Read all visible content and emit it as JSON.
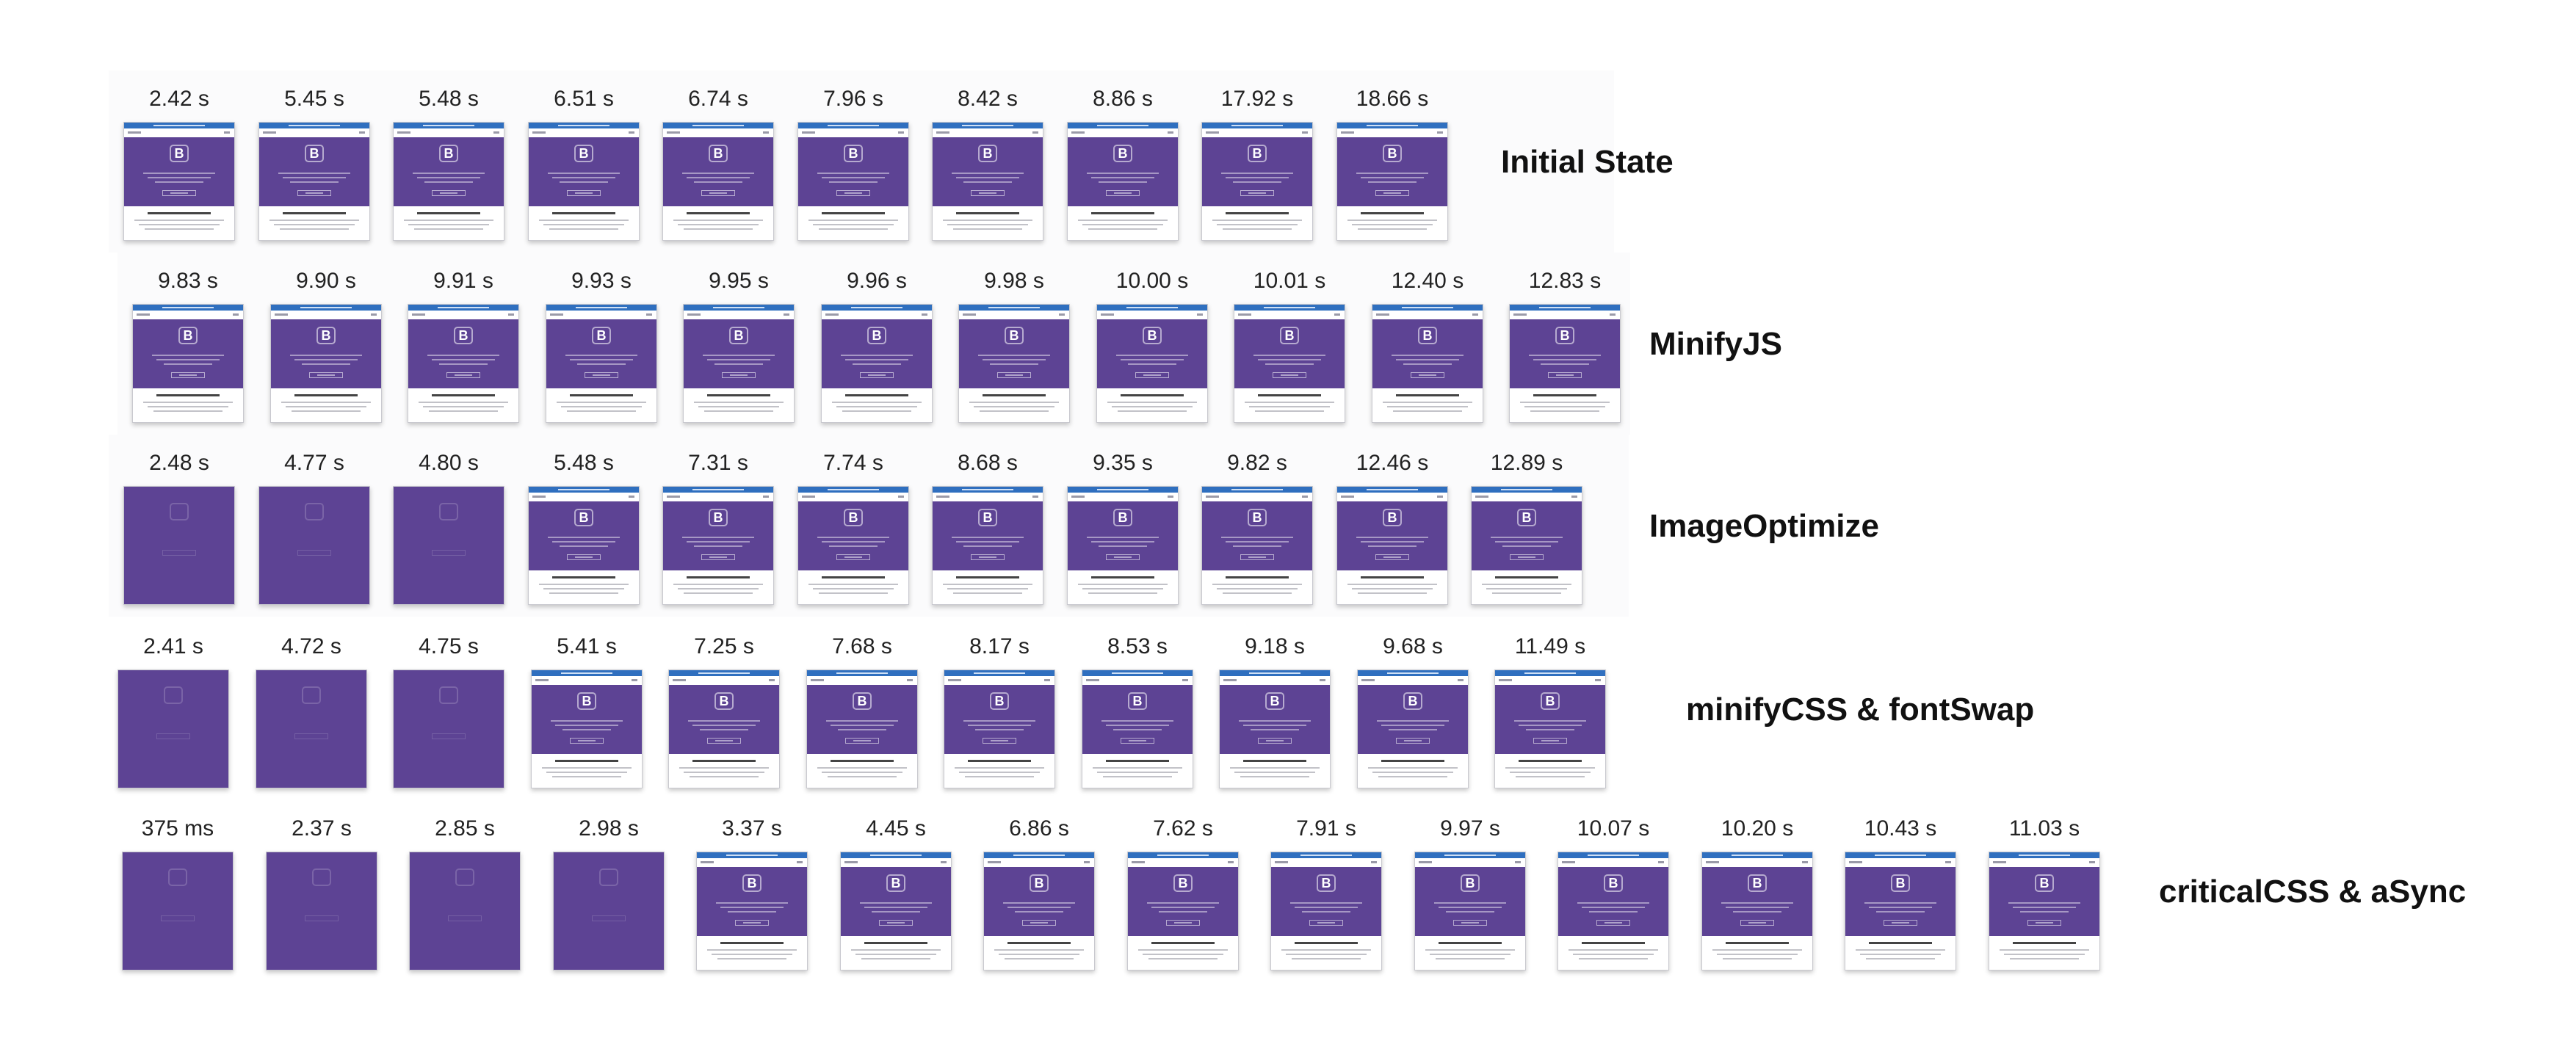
{
  "thumbnail": {
    "logo_letter": "B",
    "hero_color": "#5d4394",
    "bar_color": "#2f6fbf"
  },
  "rows": [
    {
      "label": "Initial State",
      "frames": [
        {
          "time": "2.42 s",
          "state": "loaded"
        },
        {
          "time": "5.45 s",
          "state": "loaded"
        },
        {
          "time": "5.48 s",
          "state": "loaded"
        },
        {
          "time": "6.51 s",
          "state": "loaded"
        },
        {
          "time": "6.74 s",
          "state": "loaded"
        },
        {
          "time": "7.96 s",
          "state": "loaded"
        },
        {
          "time": "8.42 s",
          "state": "loaded"
        },
        {
          "time": "8.86 s",
          "state": "loaded"
        },
        {
          "time": "17.92 s",
          "state": "loaded"
        },
        {
          "time": "18.66 s",
          "state": "loaded"
        }
      ]
    },
    {
      "label": "MinifyJS",
      "frames": [
        {
          "time": "9.83 s",
          "state": "loaded"
        },
        {
          "time": "9.90 s",
          "state": "loaded"
        },
        {
          "time": "9.91 s",
          "state": "loaded"
        },
        {
          "time": "9.93 s",
          "state": "loaded"
        },
        {
          "time": "9.95 s",
          "state": "loaded"
        },
        {
          "time": "9.96 s",
          "state": "loaded"
        },
        {
          "time": "9.98 s",
          "state": "loaded"
        },
        {
          "time": "10.00 s",
          "state": "loaded"
        },
        {
          "time": "10.01 s",
          "state": "loaded"
        },
        {
          "time": "12.40 s",
          "state": "loaded"
        },
        {
          "time": "12.83 s",
          "state": "loaded"
        }
      ]
    },
    {
      "label": "ImageOptimize",
      "frames": [
        {
          "time": "2.48 s",
          "state": "loading"
        },
        {
          "time": "4.77 s",
          "state": "loading"
        },
        {
          "time": "4.80 s",
          "state": "loading"
        },
        {
          "time": "5.48 s",
          "state": "loaded"
        },
        {
          "time": "7.31 s",
          "state": "loaded"
        },
        {
          "time": "7.74 s",
          "state": "loaded"
        },
        {
          "time": "8.68 s",
          "state": "loaded"
        },
        {
          "time": "9.35 s",
          "state": "loaded"
        },
        {
          "time": "9.82 s",
          "state": "loaded"
        },
        {
          "time": "12.46 s",
          "state": "loaded"
        },
        {
          "time": "12.89 s",
          "state": "loaded"
        }
      ]
    },
    {
      "label": "minifyCSS & fontSwap",
      "frames": [
        {
          "time": "2.41 s",
          "state": "loading"
        },
        {
          "time": "4.72 s",
          "state": "loading"
        },
        {
          "time": "4.75 s",
          "state": "loading"
        },
        {
          "time": "5.41 s",
          "state": "loaded"
        },
        {
          "time": "7.25 s",
          "state": "loaded"
        },
        {
          "time": "7.68 s",
          "state": "loaded"
        },
        {
          "time": "8.17 s",
          "state": "loaded"
        },
        {
          "time": "8.53 s",
          "state": "loaded"
        },
        {
          "time": "9.18 s",
          "state": "loaded"
        },
        {
          "time": "9.68 s",
          "state": "loaded"
        },
        {
          "time": "11.49 s",
          "state": "loaded"
        }
      ]
    },
    {
      "label": "criticalCSS & aSync",
      "frames": [
        {
          "time": "375 ms",
          "state": "loading"
        },
        {
          "time": "2.37 s",
          "state": "loading"
        },
        {
          "time": "2.85 s",
          "state": "loading"
        },
        {
          "time": "2.98 s",
          "state": "loading"
        },
        {
          "time": "3.37 s",
          "state": "loaded"
        },
        {
          "time": "4.45 s",
          "state": "loaded"
        },
        {
          "time": "6.86 s",
          "state": "loaded"
        },
        {
          "time": "7.62 s",
          "state": "loaded"
        },
        {
          "time": "7.91 s",
          "state": "loaded"
        },
        {
          "time": "9.97 s",
          "state": "loaded"
        },
        {
          "time": "10.07 s",
          "state": "loaded"
        },
        {
          "time": "10.20 s",
          "state": "loaded"
        },
        {
          "time": "10.43 s",
          "state": "loaded"
        },
        {
          "time": "11.03 s",
          "state": "loaded"
        }
      ]
    }
  ]
}
